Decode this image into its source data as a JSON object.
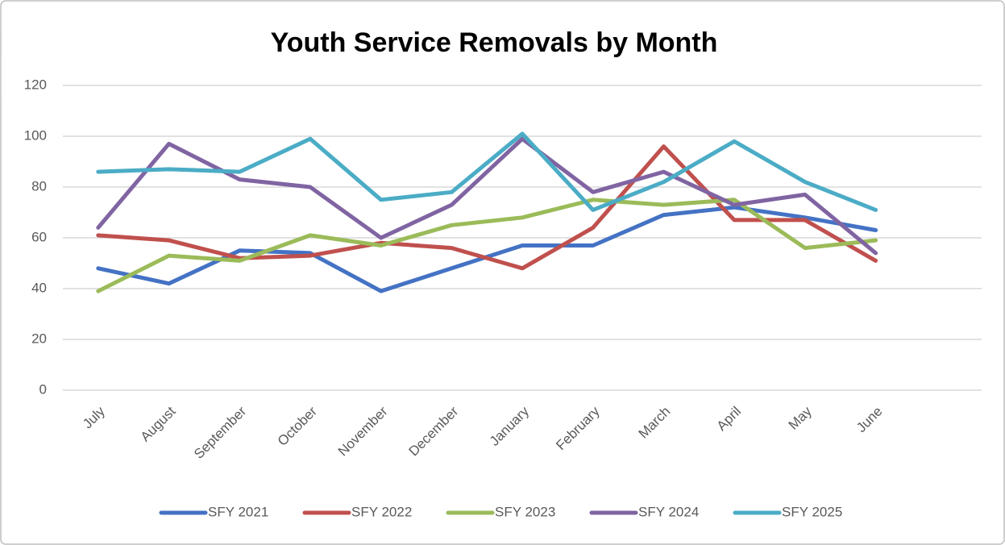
{
  "chart_data": {
    "type": "line",
    "title": "Youth Service Removals by Month",
    "categories": [
      "July",
      "August",
      "September",
      "October",
      "November",
      "December",
      "January",
      "February",
      "March",
      "April",
      "May",
      "June"
    ],
    "series": [
      {
        "name": "SFY 2021",
        "color": "#4472c4",
        "values": [
          48,
          42,
          55,
          54,
          39,
          48,
          57,
          57,
          69,
          72,
          68,
          63
        ]
      },
      {
        "name": "SFY 2022",
        "color": "#c0504d",
        "values": [
          61,
          59,
          52,
          53,
          58,
          56,
          48,
          64,
          96,
          67,
          67,
          51
        ]
      },
      {
        "name": "SFY 2023",
        "color": "#9bbb59",
        "values": [
          39,
          53,
          51,
          61,
          57,
          65,
          68,
          75,
          73,
          75,
          56,
          59
        ]
      },
      {
        "name": "SFY 2024",
        "color": "#8064a2",
        "values": [
          64,
          97,
          83,
          80,
          60,
          73,
          99,
          78,
          86,
          73,
          77,
          54
        ]
      },
      {
        "name": "SFY 2025",
        "color": "#4bacc6",
        "values": [
          86,
          87,
          86,
          99,
          75,
          78,
          101,
          71,
          82,
          98,
          82,
          71
        ]
      }
    ],
    "ylim": [
      0,
      120
    ],
    "yticks": [
      0,
      20,
      40,
      60,
      80,
      100,
      120
    ],
    "grid": true,
    "legend": "bottom"
  }
}
